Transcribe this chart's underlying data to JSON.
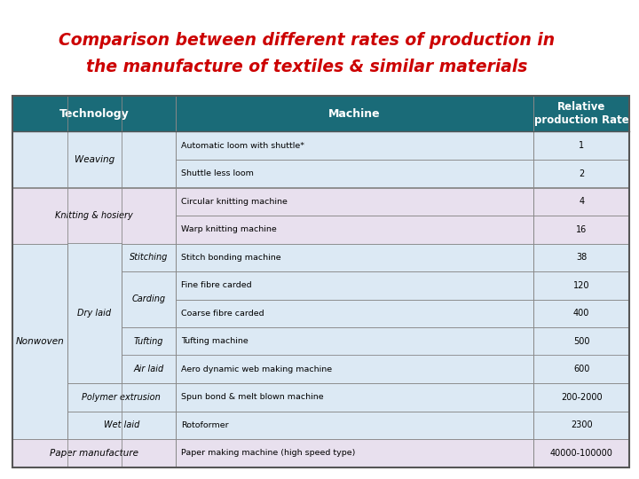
{
  "title_line1": "Comparison between different rates of production in",
  "title_line2": "the manufacture of textiles & similar materials",
  "title_color": "#cc0000",
  "header_bg": "#1a6b78",
  "header_text_color": "#ffffff",
  "bg_white": "#ffffff",
  "bg_blue": "#dce9f4",
  "bg_lavender": "#e8e0ee",
  "border_color": "#888888",
  "cell_border": "#aaaaaa",
  "machines": [
    "Automatic loom with shuttle*",
    "Shuttle less loom",
    "Circular knitting machine",
    "Warp knitting machine",
    "Stitch bonding machine",
    "Fine fibre carded",
    "Coarse fibre carded",
    "Tufting machine",
    "Aero dynamic web making machine",
    "Spun bond & melt blown machine",
    "Rotoformer",
    "Paper making machine (high speed type)"
  ],
  "rates": [
    "1",
    "2",
    "4",
    "16",
    "38",
    "120",
    "400",
    "500",
    "600",
    "200-2000",
    "2300",
    "40000-100000"
  ],
  "row_bgs": [
    "#dce9f4",
    "#dce9f4",
    "#e8e0ee",
    "#e8e0ee",
    "#dce9f4",
    "#dce9f4",
    "#dce9f4",
    "#dce9f4",
    "#dce9f4",
    "#dce9f4",
    "#dce9f4",
    "#e8e0ee"
  ],
  "n_rows": 12,
  "figsize": [
    7.2,
    5.4
  ],
  "dpi": 100
}
